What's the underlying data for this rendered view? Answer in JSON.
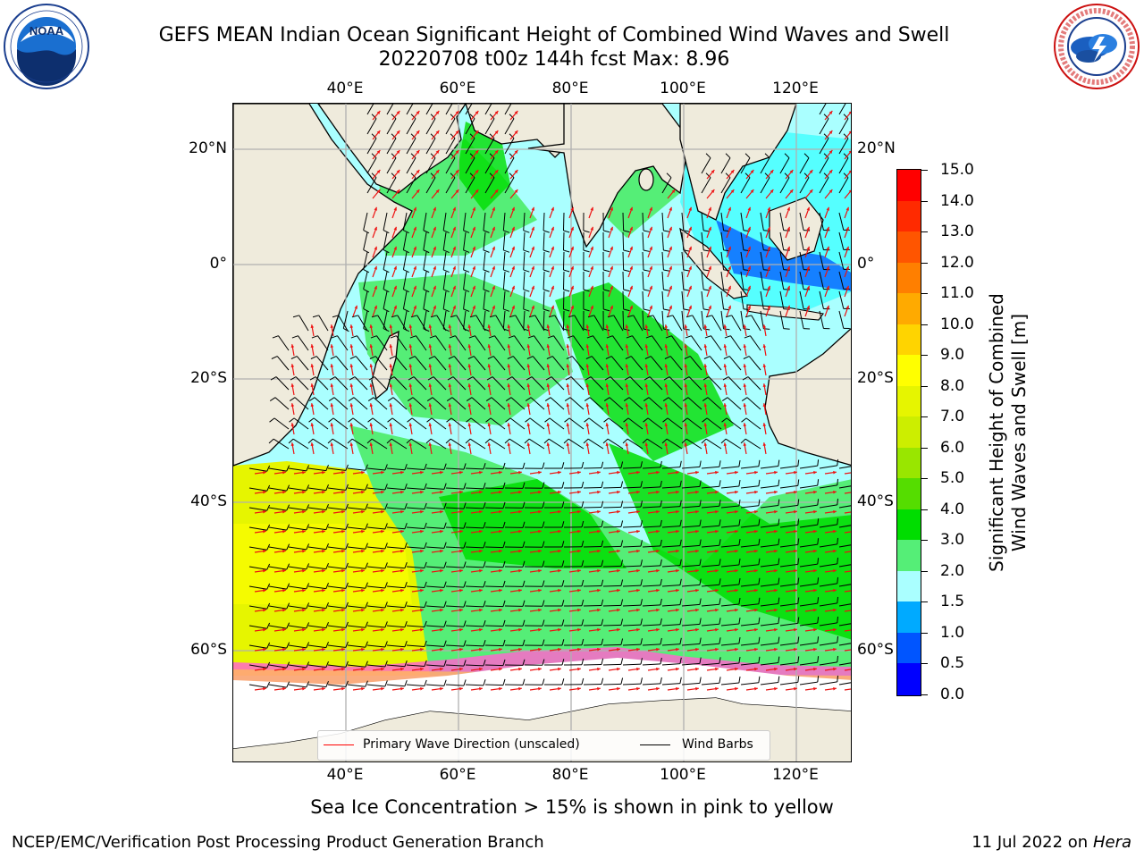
{
  "header": {
    "title_line1": "GEFS MEAN Indian Ocean Significant Height of Combined Wind Waves and Swell",
    "title_line2": "20220708 t00z 144h fcst   Max: 8.96"
  },
  "logos": {
    "noaa_text": "NOAA",
    "noaa_ring_text": "NATIONAL OCEANIC AND ATMOSPHERIC ADMINISTRATION · U.S. DEPARTMENT OF COMMERCE",
    "nws_ring_text": "NATIONAL WEATHER SERVICE"
  },
  "map": {
    "lon_ticks": [
      "40°E",
      "60°E",
      "80°E",
      "100°E",
      "120°E"
    ],
    "lat_ticks_left": [
      "20°N",
      "0°",
      "20°S",
      "40°S",
      "60°S"
    ],
    "lat_ticks_right": [
      "20°N",
      "0°",
      "20°S",
      "40°S",
      "60°S"
    ],
    "colors": {
      "land": "#efebdc",
      "sea_ice_white": "#ffffff",
      "grid": "#b0b0b0",
      "wave_arrow": "#ee1111",
      "wind_barb": "#000000"
    }
  },
  "legend": {
    "primary_wave": "Primary Wave Direction (unscaled)",
    "wind_barbs": "Wind Barbs",
    "primary_wave_color": "#ff0000",
    "wind_barbs_color": "#000000"
  },
  "colorbar": {
    "title_line1": "Significant Height of Combined",
    "title_line2": "Wind Waves and Swell [m]",
    "labels": [
      "15.0",
      "14.0",
      "13.0",
      "12.0",
      "11.0",
      "10.0",
      "9.0",
      "8.0",
      "7.0",
      "6.0",
      "5.0",
      "4.0",
      "3.0",
      "2.0",
      "1.5",
      "1.0",
      "0.5",
      "0.0"
    ],
    "colors_top_to_bottom": [
      "#ff0000",
      "#ff2a00",
      "#ff5500",
      "#ff7f00",
      "#ffaa00",
      "#ffd400",
      "#ffff00",
      "#e6f500",
      "#ccee00",
      "#99e600",
      "#55dd00",
      "#00dd00",
      "#55ee77",
      "#aaffff",
      "#55ffff",
      "#00ffff",
      "#00aaff",
      "#0055ff",
      "#0000ff"
    ]
  },
  "notes": {
    "sea_ice": "Sea Ice Concentration > 15% is shown in pink to yellow"
  },
  "footer": {
    "left": "NCEP/EMC/Verification Post Processing Product Generation Branch",
    "right_prefix": "11 Jul 2022 on ",
    "right_machine": "Hera"
  }
}
